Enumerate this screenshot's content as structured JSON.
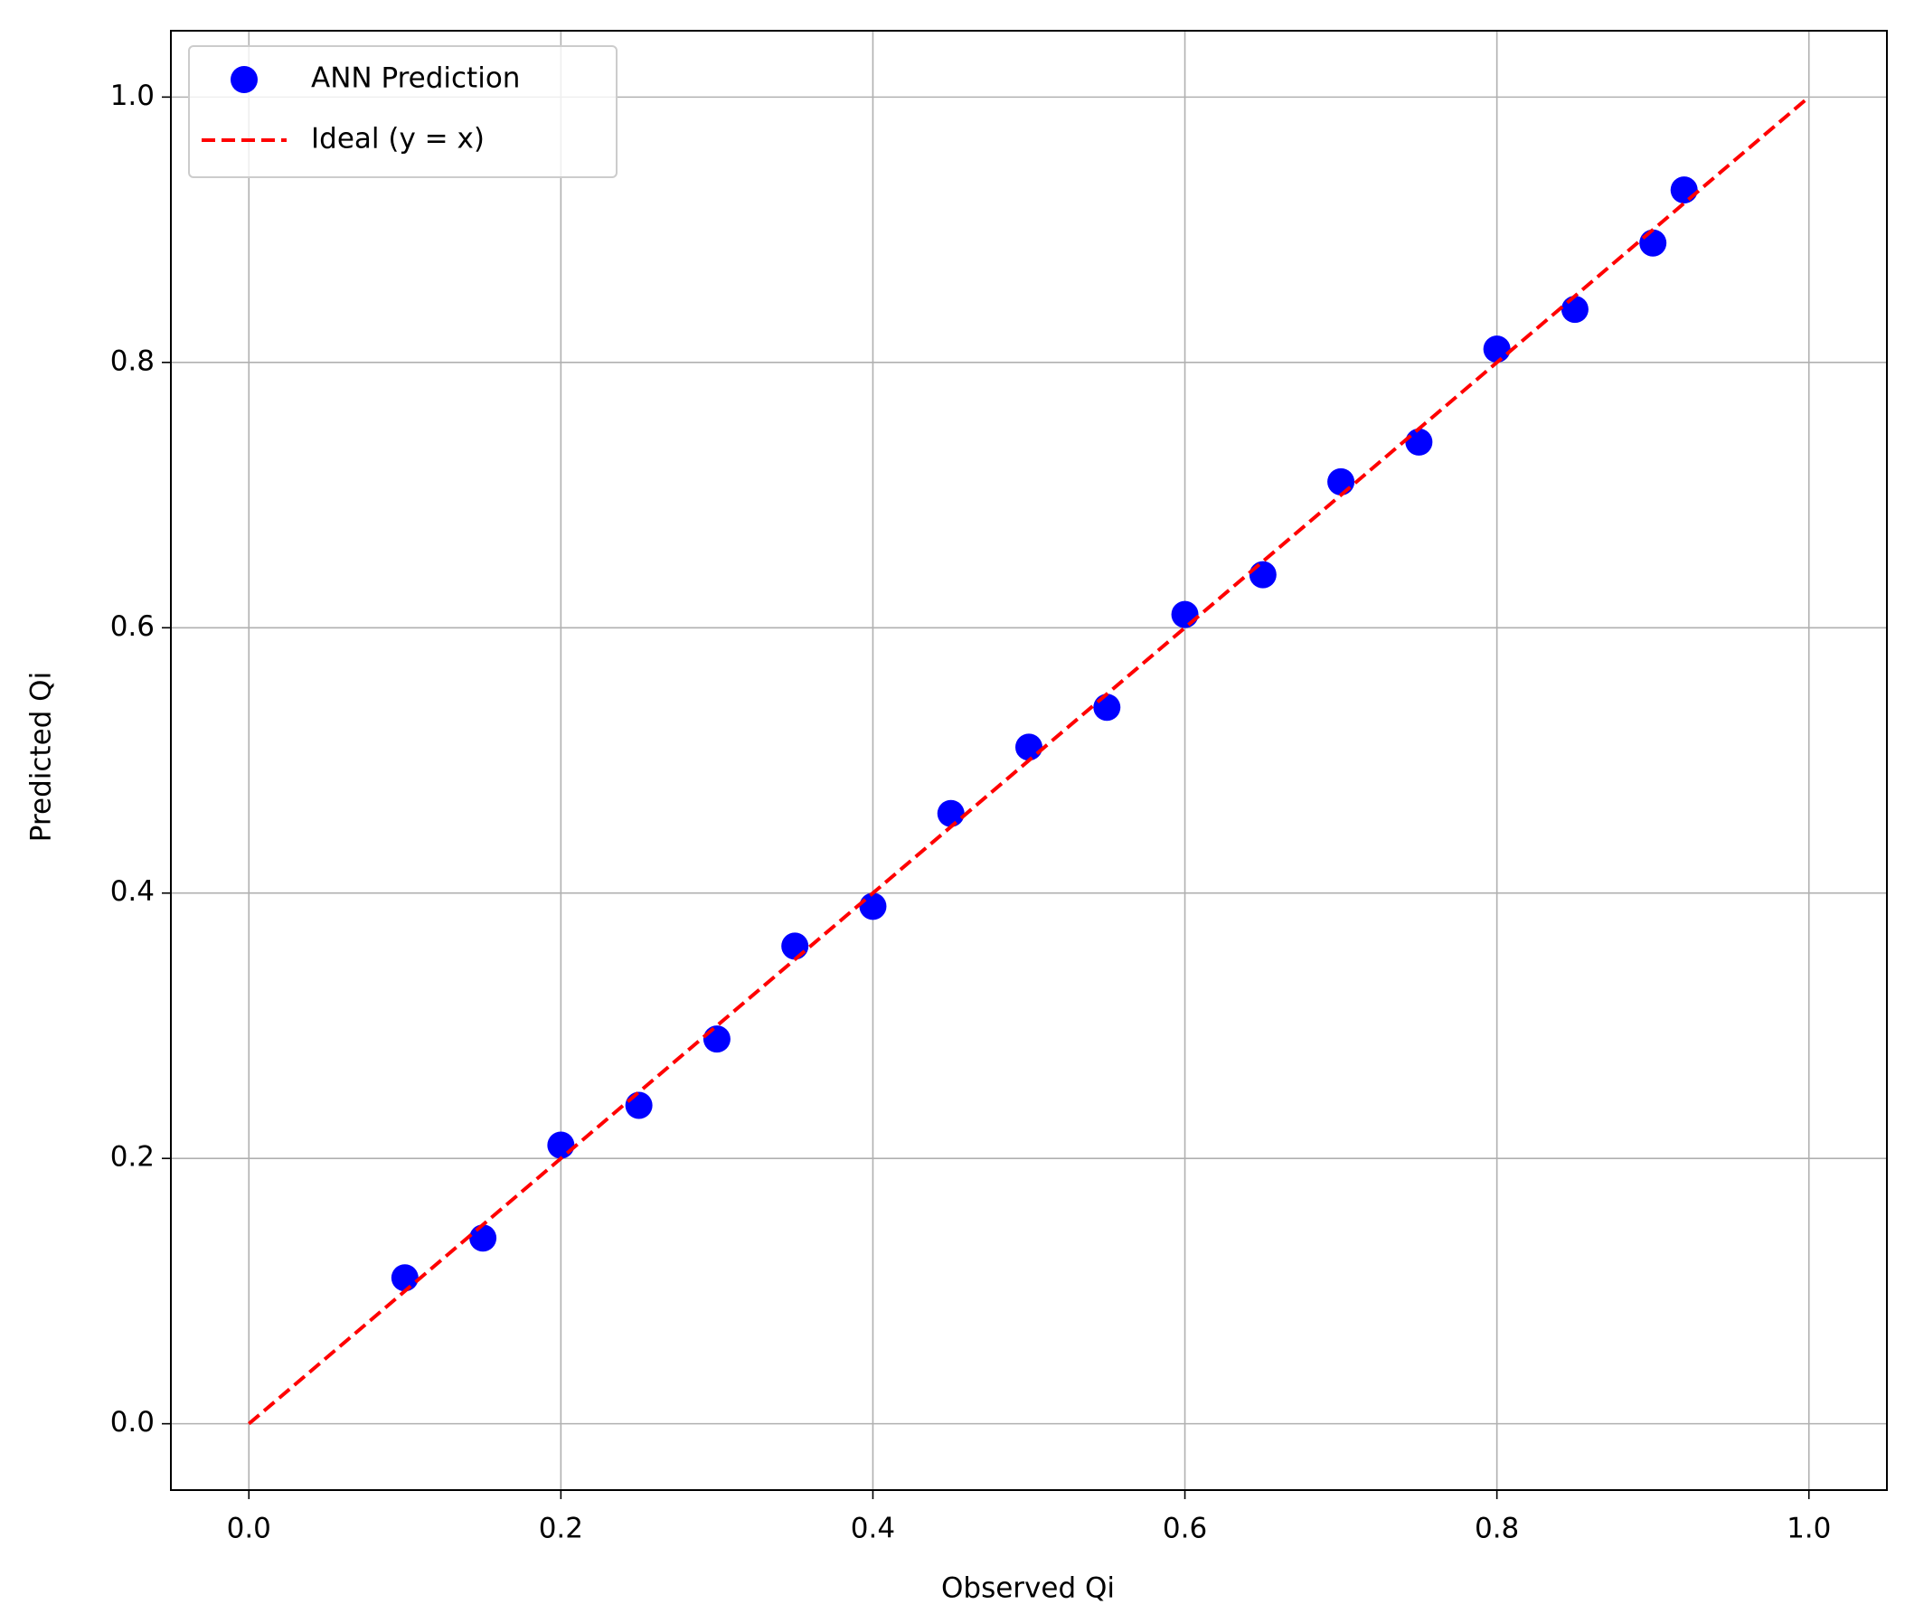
{
  "chart_data": {
    "type": "scatter",
    "xlabel": "Observed Qi",
    "ylabel": "Predicted Qi",
    "xlim": [
      -0.05,
      1.05
    ],
    "ylim": [
      -0.05,
      1.05
    ],
    "xticks": [
      {
        "value": 0,
        "label": "0.0"
      },
      0.2,
      0.4,
      0.6,
      0.8,
      {
        "value": 1,
        "label": "1.0"
      }
    ],
    "yticks": [
      {
        "value": 0,
        "label": "0.0"
      },
      0.2,
      0.4,
      0.6,
      0.8,
      {
        "value": 1,
        "label": "1.0"
      }
    ],
    "grid": true,
    "legend": "upper left",
    "series": [
      {
        "name": "ANN Prediction",
        "color": "#0000ff",
        "style": "markers",
        "x": [
          0.1,
          0.15,
          0.2,
          0.25,
          0.3,
          0.35,
          0.4,
          0.45,
          0.5,
          0.55,
          0.6,
          0.65,
          0.7,
          0.75,
          0.8,
          0.85,
          0.9,
          0.92
        ],
        "values": [
          0.11,
          0.14,
          0.21,
          0.24,
          0.29,
          0.36,
          0.39,
          0.46,
          0.51,
          0.54,
          0.61,
          0.64,
          0.71,
          0.74,
          0.81,
          0.84,
          0.89,
          0.93
        ]
      },
      {
        "name": "Ideal (y = x)",
        "color": "#ff0000",
        "style": "dashed-line",
        "x": [
          0,
          1
        ],
        "values": [
          0,
          1
        ]
      }
    ]
  }
}
